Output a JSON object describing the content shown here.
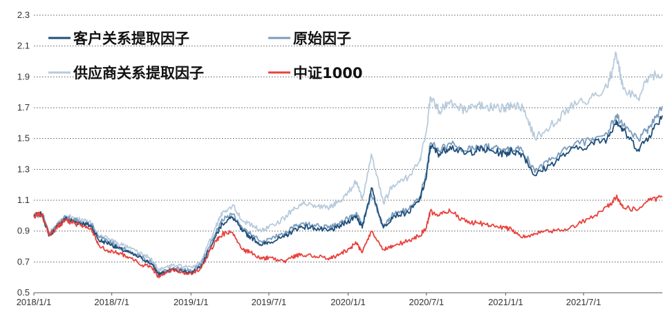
{
  "chart_data": {
    "type": "line",
    "title": "",
    "xlabel": "",
    "ylabel": "",
    "ylim": [
      0.5,
      2.3
    ],
    "xlim": [
      "2018-01-01",
      "2021-12-31"
    ],
    "yticks": [
      0.5,
      0.7,
      0.9,
      1.1,
      1.3,
      1.5,
      1.7,
      1.9,
      2.1,
      2.3
    ],
    "ytick_labels": [
      "0.5",
      "0.7",
      "0.9",
      "1.1",
      "1.3",
      "1.5",
      "1.7",
      "1.9",
      "2.1",
      "2.3"
    ],
    "xticks": [
      "2018-01-01",
      "2018-07-01",
      "2019-01-01",
      "2019-07-01",
      "2020-01-01",
      "2020-07-01",
      "2021-01-01",
      "2021-07-01"
    ],
    "xtick_labels": [
      "2018/1/1",
      "2018/7/1",
      "2019/1/1",
      "2019/7/1",
      "2020/1/1",
      "2020/7/1",
      "2021/1/1",
      "2021/7/1"
    ],
    "grid": "horizontal dotted",
    "legend_position": "top-left, two columns",
    "series": [
      {
        "name": "客户关系提取因子",
        "color": "#1f4e79",
        "points": [
          [
            "2018-01-01",
            1.0
          ],
          [
            "2018-01-20",
            1.01
          ],
          [
            "2018-02-06",
            0.87
          ],
          [
            "2018-02-25",
            0.93
          ],
          [
            "2018-03-15",
            0.98
          ],
          [
            "2018-04-05",
            0.96
          ],
          [
            "2018-04-25",
            0.95
          ],
          [
            "2018-05-15",
            0.93
          ],
          [
            "2018-06-01",
            0.84
          ],
          [
            "2018-06-25",
            0.82
          ],
          [
            "2018-07-15",
            0.79
          ],
          [
            "2018-08-10",
            0.76
          ],
          [
            "2018-09-10",
            0.72
          ],
          [
            "2018-09-30",
            0.69
          ],
          [
            "2018-10-18",
            0.62
          ],
          [
            "2018-10-30",
            0.63
          ],
          [
            "2018-11-20",
            0.65
          ],
          [
            "2018-12-15",
            0.64
          ],
          [
            "2019-01-04",
            0.63
          ],
          [
            "2019-01-25",
            0.68
          ],
          [
            "2019-02-28",
            0.87
          ],
          [
            "2019-03-15",
            0.95
          ],
          [
            "2019-04-08",
            0.99
          ],
          [
            "2019-04-30",
            0.9
          ],
          [
            "2019-05-20",
            0.86
          ],
          [
            "2019-06-15",
            0.81
          ],
          [
            "2019-07-01",
            0.83
          ],
          [
            "2019-08-05",
            0.86
          ],
          [
            "2019-08-25",
            0.9
          ],
          [
            "2019-09-15",
            0.93
          ],
          [
            "2019-10-15",
            0.92
          ],
          [
            "2019-11-15",
            0.9
          ],
          [
            "2019-12-05",
            0.92
          ],
          [
            "2019-12-31",
            0.96
          ],
          [
            "2020-01-20",
            1.0
          ],
          [
            "2020-02-03",
            0.92
          ],
          [
            "2020-02-24",
            1.18
          ],
          [
            "2020-03-23",
            0.92
          ],
          [
            "2020-04-15",
            1.0
          ],
          [
            "2020-05-20",
            1.02
          ],
          [
            "2020-06-15",
            1.1
          ],
          [
            "2020-07-01",
            1.25
          ],
          [
            "2020-07-10",
            1.45
          ],
          [
            "2020-07-31",
            1.4
          ],
          [
            "2020-08-25",
            1.45
          ],
          [
            "2020-09-30",
            1.4
          ],
          [
            "2020-10-30",
            1.43
          ],
          [
            "2020-11-30",
            1.42
          ],
          [
            "2020-12-31",
            1.4
          ],
          [
            "2021-01-15",
            1.42
          ],
          [
            "2021-02-10",
            1.4
          ],
          [
            "2021-03-10",
            1.26
          ],
          [
            "2021-04-15",
            1.33
          ],
          [
            "2021-05-30",
            1.42
          ],
          [
            "2021-07-15",
            1.46
          ],
          [
            "2021-08-25",
            1.5
          ],
          [
            "2021-09-15",
            1.62
          ],
          [
            "2021-10-01",
            1.55
          ],
          [
            "2021-11-05",
            1.43
          ],
          [
            "2021-12-01",
            1.52
          ],
          [
            "2021-12-31",
            1.65
          ]
        ]
      },
      {
        "name": "原始因子",
        "color": "#7a9cbd",
        "points": [
          [
            "2018-01-01",
            1.0
          ],
          [
            "2018-01-20",
            1.01
          ],
          [
            "2018-02-06",
            0.88
          ],
          [
            "2018-02-25",
            0.94
          ],
          [
            "2018-03-15",
            0.99
          ],
          [
            "2018-04-05",
            0.97
          ],
          [
            "2018-04-25",
            0.96
          ],
          [
            "2018-05-15",
            0.94
          ],
          [
            "2018-06-01",
            0.86
          ],
          [
            "2018-06-25",
            0.83
          ],
          [
            "2018-07-15",
            0.8
          ],
          [
            "2018-08-10",
            0.77
          ],
          [
            "2018-09-10",
            0.73
          ],
          [
            "2018-09-30",
            0.7
          ],
          [
            "2018-10-18",
            0.63
          ],
          [
            "2018-10-30",
            0.64
          ],
          [
            "2018-11-20",
            0.66
          ],
          [
            "2018-12-15",
            0.65
          ],
          [
            "2019-01-04",
            0.64
          ],
          [
            "2019-01-25",
            0.69
          ],
          [
            "2019-02-28",
            0.89
          ],
          [
            "2019-03-15",
            0.97
          ],
          [
            "2019-04-08",
            1.01
          ],
          [
            "2019-04-30",
            0.92
          ],
          [
            "2019-05-20",
            0.88
          ],
          [
            "2019-06-15",
            0.83
          ],
          [
            "2019-07-01",
            0.85
          ],
          [
            "2019-08-05",
            0.88
          ],
          [
            "2019-08-25",
            0.92
          ],
          [
            "2019-09-15",
            0.95
          ],
          [
            "2019-10-15",
            0.94
          ],
          [
            "2019-11-15",
            0.92
          ],
          [
            "2019-12-05",
            0.94
          ],
          [
            "2019-12-31",
            0.98
          ],
          [
            "2020-01-20",
            1.02
          ],
          [
            "2020-02-03",
            0.94
          ],
          [
            "2020-02-24",
            1.14
          ],
          [
            "2020-03-23",
            0.93
          ],
          [
            "2020-04-15",
            1.01
          ],
          [
            "2020-05-20",
            1.04
          ],
          [
            "2020-06-15",
            1.12
          ],
          [
            "2020-07-01",
            1.28
          ],
          [
            "2020-07-10",
            1.47
          ],
          [
            "2020-07-31",
            1.42
          ],
          [
            "2020-08-25",
            1.47
          ],
          [
            "2020-09-30",
            1.42
          ],
          [
            "2020-10-30",
            1.45
          ],
          [
            "2020-11-30",
            1.44
          ],
          [
            "2020-12-31",
            1.42
          ],
          [
            "2021-01-15",
            1.44
          ],
          [
            "2021-02-10",
            1.42
          ],
          [
            "2021-03-10",
            1.28
          ],
          [
            "2021-04-15",
            1.36
          ],
          [
            "2021-05-30",
            1.45
          ],
          [
            "2021-07-15",
            1.49
          ],
          [
            "2021-08-25",
            1.53
          ],
          [
            "2021-09-15",
            1.65
          ],
          [
            "2021-10-01",
            1.58
          ],
          [
            "2021-11-05",
            1.5
          ],
          [
            "2021-12-01",
            1.57
          ],
          [
            "2021-12-31",
            1.71
          ]
        ]
      },
      {
        "name": "供应商关系提取因子",
        "color": "#b8cbdc",
        "points": [
          [
            "2018-01-01",
            1.0
          ],
          [
            "2018-01-20",
            1.01
          ],
          [
            "2018-02-06",
            0.89
          ],
          [
            "2018-02-25",
            0.95
          ],
          [
            "2018-03-15",
            1.0
          ],
          [
            "2018-04-05",
            0.98
          ],
          [
            "2018-04-25",
            0.97
          ],
          [
            "2018-05-15",
            0.95
          ],
          [
            "2018-06-01",
            0.87
          ],
          [
            "2018-06-25",
            0.85
          ],
          [
            "2018-07-15",
            0.82
          ],
          [
            "2018-08-10",
            0.79
          ],
          [
            "2018-09-10",
            0.75
          ],
          [
            "2018-09-30",
            0.72
          ],
          [
            "2018-10-18",
            0.65
          ],
          [
            "2018-10-30",
            0.66
          ],
          [
            "2018-11-20",
            0.68
          ],
          [
            "2018-12-15",
            0.67
          ],
          [
            "2019-01-04",
            0.66
          ],
          [
            "2019-01-25",
            0.71
          ],
          [
            "2019-02-28",
            0.93
          ],
          [
            "2019-03-15",
            1.02
          ],
          [
            "2019-04-08",
            1.07
          ],
          [
            "2019-04-30",
            0.97
          ],
          [
            "2019-05-20",
            0.94
          ],
          [
            "2019-06-15",
            0.9
          ],
          [
            "2019-07-01",
            0.93
          ],
          [
            "2019-08-05",
            0.98
          ],
          [
            "2019-08-25",
            1.04
          ],
          [
            "2019-09-15",
            1.08
          ],
          [
            "2019-10-15",
            1.07
          ],
          [
            "2019-11-15",
            1.05
          ],
          [
            "2019-12-05",
            1.08
          ],
          [
            "2019-12-31",
            1.15
          ],
          [
            "2020-01-20",
            1.22
          ],
          [
            "2020-02-03",
            1.1
          ],
          [
            "2020-02-24",
            1.4
          ],
          [
            "2020-03-23",
            1.08
          ],
          [
            "2020-04-15",
            1.2
          ],
          [
            "2020-05-20",
            1.25
          ],
          [
            "2020-06-15",
            1.35
          ],
          [
            "2020-07-01",
            1.55
          ],
          [
            "2020-07-10",
            1.77
          ],
          [
            "2020-07-31",
            1.68
          ],
          [
            "2020-08-25",
            1.74
          ],
          [
            "2020-09-30",
            1.68
          ],
          [
            "2020-10-30",
            1.72
          ],
          [
            "2020-11-30",
            1.7
          ],
          [
            "2020-12-31",
            1.7
          ],
          [
            "2021-01-15",
            1.72
          ],
          [
            "2021-02-10",
            1.7
          ],
          [
            "2021-03-10",
            1.5
          ],
          [
            "2021-04-15",
            1.58
          ],
          [
            "2021-05-30",
            1.7
          ],
          [
            "2021-07-15",
            1.76
          ],
          [
            "2021-08-25",
            1.83
          ],
          [
            "2021-09-15",
            2.05
          ],
          [
            "2021-10-01",
            1.82
          ],
          [
            "2021-11-05",
            1.76
          ],
          [
            "2021-12-01",
            1.9
          ],
          [
            "2021-12-31",
            1.92
          ]
        ]
      },
      {
        "name": "中证1000",
        "color": "#e8413c",
        "points": [
          [
            "2018-01-01",
            1.0
          ],
          [
            "2018-01-20",
            1.01
          ],
          [
            "2018-02-06",
            0.87
          ],
          [
            "2018-02-25",
            0.93
          ],
          [
            "2018-03-15",
            0.97
          ],
          [
            "2018-04-05",
            0.95
          ],
          [
            "2018-04-25",
            0.93
          ],
          [
            "2018-05-15",
            0.91
          ],
          [
            "2018-06-01",
            0.81
          ],
          [
            "2018-06-25",
            0.77
          ],
          [
            "2018-07-15",
            0.76
          ],
          [
            "2018-08-10",
            0.73
          ],
          [
            "2018-09-10",
            0.68
          ],
          [
            "2018-09-30",
            0.67
          ],
          [
            "2018-10-18",
            0.6
          ],
          [
            "2018-10-30",
            0.62
          ],
          [
            "2018-11-20",
            0.65
          ],
          [
            "2018-12-15",
            0.63
          ],
          [
            "2019-01-04",
            0.62
          ],
          [
            "2019-01-25",
            0.66
          ],
          [
            "2019-02-28",
            0.84
          ],
          [
            "2019-03-15",
            0.88
          ],
          [
            "2019-04-08",
            0.89
          ],
          [
            "2019-04-30",
            0.78
          ],
          [
            "2019-05-20",
            0.76
          ],
          [
            "2019-06-15",
            0.72
          ],
          [
            "2019-07-01",
            0.73
          ],
          [
            "2019-08-05",
            0.7
          ],
          [
            "2019-08-25",
            0.73
          ],
          [
            "2019-09-15",
            0.75
          ],
          [
            "2019-10-15",
            0.74
          ],
          [
            "2019-11-15",
            0.72
          ],
          [
            "2019-12-05",
            0.74
          ],
          [
            "2019-12-31",
            0.78
          ],
          [
            "2020-01-20",
            0.82
          ],
          [
            "2020-02-03",
            0.76
          ],
          [
            "2020-02-24",
            0.9
          ],
          [
            "2020-03-23",
            0.78
          ],
          [
            "2020-04-15",
            0.8
          ],
          [
            "2020-05-20",
            0.84
          ],
          [
            "2020-06-15",
            0.87
          ],
          [
            "2020-07-01",
            0.92
          ],
          [
            "2020-07-10",
            1.03
          ],
          [
            "2020-07-31",
            1.0
          ],
          [
            "2020-08-25",
            1.03
          ],
          [
            "2020-09-30",
            0.96
          ],
          [
            "2020-10-30",
            0.95
          ],
          [
            "2020-11-30",
            0.94
          ],
          [
            "2020-12-31",
            0.92
          ],
          [
            "2021-01-15",
            0.91
          ],
          [
            "2021-02-10",
            0.86
          ],
          [
            "2021-03-10",
            0.88
          ],
          [
            "2021-04-15",
            0.9
          ],
          [
            "2021-05-30",
            0.92
          ],
          [
            "2021-07-15",
            0.98
          ],
          [
            "2021-08-25",
            1.06
          ],
          [
            "2021-09-15",
            1.12
          ],
          [
            "2021-10-01",
            1.05
          ],
          [
            "2021-11-05",
            1.04
          ],
          [
            "2021-12-01",
            1.1
          ],
          [
            "2021-12-31",
            1.12
          ]
        ]
      }
    ]
  }
}
